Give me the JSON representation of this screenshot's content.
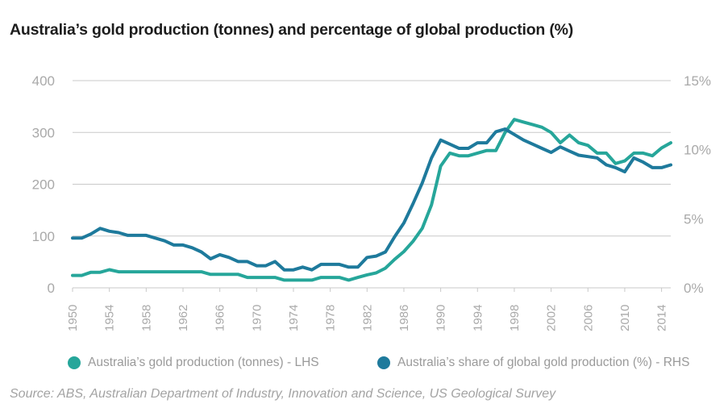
{
  "colors": {
    "production": "#26a69a",
    "share": "#1e7a9c",
    "grid": "#c9c9c9",
    "tick": "#a9a9a9"
  },
  "chart_data": {
    "type": "line",
    "title": "Australia’s gold production (tonnes) and percentage of global production (%)",
    "x": [
      1950,
      1951,
      1952,
      1953,
      1954,
      1955,
      1956,
      1957,
      1958,
      1959,
      1960,
      1961,
      1962,
      1963,
      1964,
      1965,
      1966,
      1967,
      1968,
      1969,
      1970,
      1971,
      1972,
      1973,
      1974,
      1975,
      1976,
      1977,
      1978,
      1979,
      1980,
      1981,
      1982,
      1983,
      1984,
      1985,
      1986,
      1987,
      1988,
      1989,
      1990,
      1991,
      1992,
      1993,
      1994,
      1995,
      1996,
      1997,
      1998,
      1999,
      2000,
      2001,
      2002,
      2003,
      2004,
      2005,
      2006,
      2007,
      2008,
      2009,
      2010,
      2011,
      2012,
      2013,
      2014,
      2015
    ],
    "x_tick_labels": [
      "1950",
      "1954",
      "1958",
      "1962",
      "1966",
      "1970",
      "1974",
      "1978",
      "1982",
      "1986",
      "1990",
      "1994",
      "1998",
      "2002",
      "2006",
      "2010",
      "2014"
    ],
    "y_left": {
      "ticks": [
        "400",
        "300",
        "200",
        "100",
        "0"
      ],
      "ylim": [
        0,
        400
      ]
    },
    "y_right": {
      "ticks": [
        "15%",
        "10%",
        "5%",
        "0%"
      ],
      "ylim": [
        0,
        15
      ]
    },
    "series": [
      {
        "name": "Australia’s gold production (tonnes) - LHS",
        "axis": "left",
        "values": [
          24,
          24,
          30,
          30,
          35,
          31,
          31,
          31,
          31,
          31,
          31,
          31,
          31,
          31,
          31,
          26,
          26,
          26,
          26,
          20,
          20,
          20,
          20,
          15,
          15,
          15,
          15,
          20,
          20,
          20,
          15,
          20,
          25,
          29,
          38,
          55,
          70,
          90,
          115,
          160,
          235,
          260,
          255,
          255,
          260,
          265,
          265,
          300,
          325,
          320,
          315,
          310,
          300,
          280,
          295,
          280,
          275,
          260,
          260,
          240,
          245,
          260,
          260,
          255,
          270,
          280
        ]
      },
      {
        "name": "Australia’s share of global gold production (%) - RHS",
        "axis": "right",
        "values": [
          3.6,
          3.6,
          3.9,
          4.3,
          4.1,
          4.0,
          3.8,
          3.8,
          3.8,
          3.6,
          3.4,
          3.1,
          3.1,
          2.9,
          2.6,
          2.1,
          2.4,
          2.2,
          1.9,
          1.9,
          1.6,
          1.6,
          1.9,
          1.3,
          1.3,
          1.5,
          1.3,
          1.7,
          1.7,
          1.7,
          1.5,
          1.5,
          2.2,
          2.3,
          2.6,
          3.7,
          4.7,
          6.1,
          7.6,
          9.4,
          10.7,
          10.4,
          10.1,
          10.1,
          10.5,
          10.5,
          11.3,
          11.5,
          11.1,
          10.7,
          10.4,
          10.1,
          9.8,
          10.2,
          9.9,
          9.6,
          9.5,
          9.4,
          8.9,
          8.7,
          8.4,
          9.4,
          9.1,
          8.7,
          8.7,
          8.9
        ]
      }
    ]
  },
  "legend": [
    {
      "label": "Australia’s gold production (tonnes) - LHS"
    },
    {
      "label": "Australia’s share of global gold production (%) - RHS"
    }
  ],
  "source": "Source: ABS, Australian Department of Industry, Innovation and Science, US Geological Survey"
}
